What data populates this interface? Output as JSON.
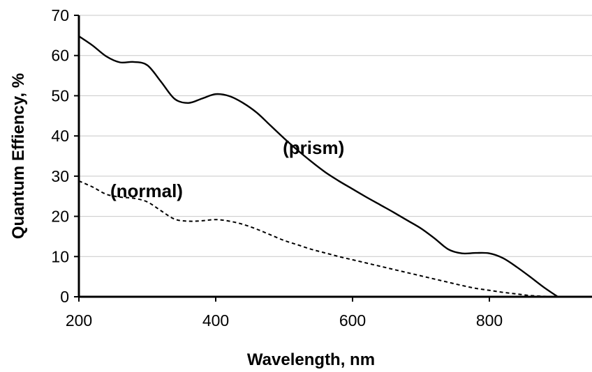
{
  "chart_data": {
    "type": "line",
    "title": "",
    "xlabel": "Wavelength, nm",
    "ylabel": "Quantum Effiency, %",
    "xlim": [
      200,
      950
    ],
    "ylim": [
      0,
      70
    ],
    "x_ticks": [
      200,
      400,
      600,
      800
    ],
    "y_ticks": [
      0,
      10,
      20,
      30,
      40,
      50,
      60,
      70
    ],
    "grid": "horizontal",
    "legend": "none",
    "series": [
      {
        "name": "(prism)",
        "style": "solid",
        "color": "#000000",
        "label_at": [
          588,
          35.5
        ],
        "points": [
          [
            200,
            64.8
          ],
          [
            220,
            62.5
          ],
          [
            240,
            59.8
          ],
          [
            260,
            58.3
          ],
          [
            280,
            58.4
          ],
          [
            300,
            57.6
          ],
          [
            320,
            53.5
          ],
          [
            340,
            49.2
          ],
          [
            360,
            48.2
          ],
          [
            380,
            49.3
          ],
          [
            400,
            50.4
          ],
          [
            420,
            49.9
          ],
          [
            440,
            48.2
          ],
          [
            460,
            45.8
          ],
          [
            480,
            42.6
          ],
          [
            500,
            39.4
          ],
          [
            520,
            36.4
          ],
          [
            540,
            33.6
          ],
          [
            560,
            31.0
          ],
          [
            580,
            28.8
          ],
          [
            600,
            26.8
          ],
          [
            620,
            24.8
          ],
          [
            640,
            22.9
          ],
          [
            660,
            21.0
          ],
          [
            680,
            19.0
          ],
          [
            700,
            17.0
          ],
          [
            720,
            14.5
          ],
          [
            740,
            11.8
          ],
          [
            760,
            10.8
          ],
          [
            780,
            10.9
          ],
          [
            800,
            10.8
          ],
          [
            820,
            9.6
          ],
          [
            840,
            7.4
          ],
          [
            860,
            4.9
          ],
          [
            880,
            2.3
          ],
          [
            900,
            0
          ]
        ]
      },
      {
        "name": "(normal)",
        "style": "dashed",
        "color": "#000000",
        "label_at": [
          352,
          24.8
        ],
        "points": [
          [
            200,
            28.8
          ],
          [
            220,
            27.3
          ],
          [
            240,
            25.5
          ],
          [
            260,
            24.8
          ],
          [
            280,
            24.5
          ],
          [
            300,
            23.6
          ],
          [
            320,
            21.4
          ],
          [
            340,
            19.3
          ],
          [
            360,
            18.8
          ],
          [
            380,
            18.9
          ],
          [
            400,
            19.2
          ],
          [
            420,
            18.8
          ],
          [
            440,
            18.0
          ],
          [
            460,
            16.8
          ],
          [
            480,
            15.4
          ],
          [
            500,
            14.0
          ],
          [
            520,
            12.9
          ],
          [
            540,
            11.8
          ],
          [
            560,
            10.9
          ],
          [
            580,
            10.0
          ],
          [
            600,
            9.2
          ],
          [
            620,
            8.4
          ],
          [
            640,
            7.6
          ],
          [
            660,
            6.8
          ],
          [
            680,
            6.0
          ],
          [
            700,
            5.2
          ],
          [
            720,
            4.4
          ],
          [
            740,
            3.6
          ],
          [
            760,
            2.8
          ],
          [
            780,
            2.1
          ],
          [
            800,
            1.6
          ],
          [
            820,
            1.1
          ],
          [
            840,
            0.7
          ],
          [
            860,
            0.3
          ],
          [
            880,
            0.1
          ],
          [
            900,
            0
          ]
        ]
      }
    ]
  }
}
